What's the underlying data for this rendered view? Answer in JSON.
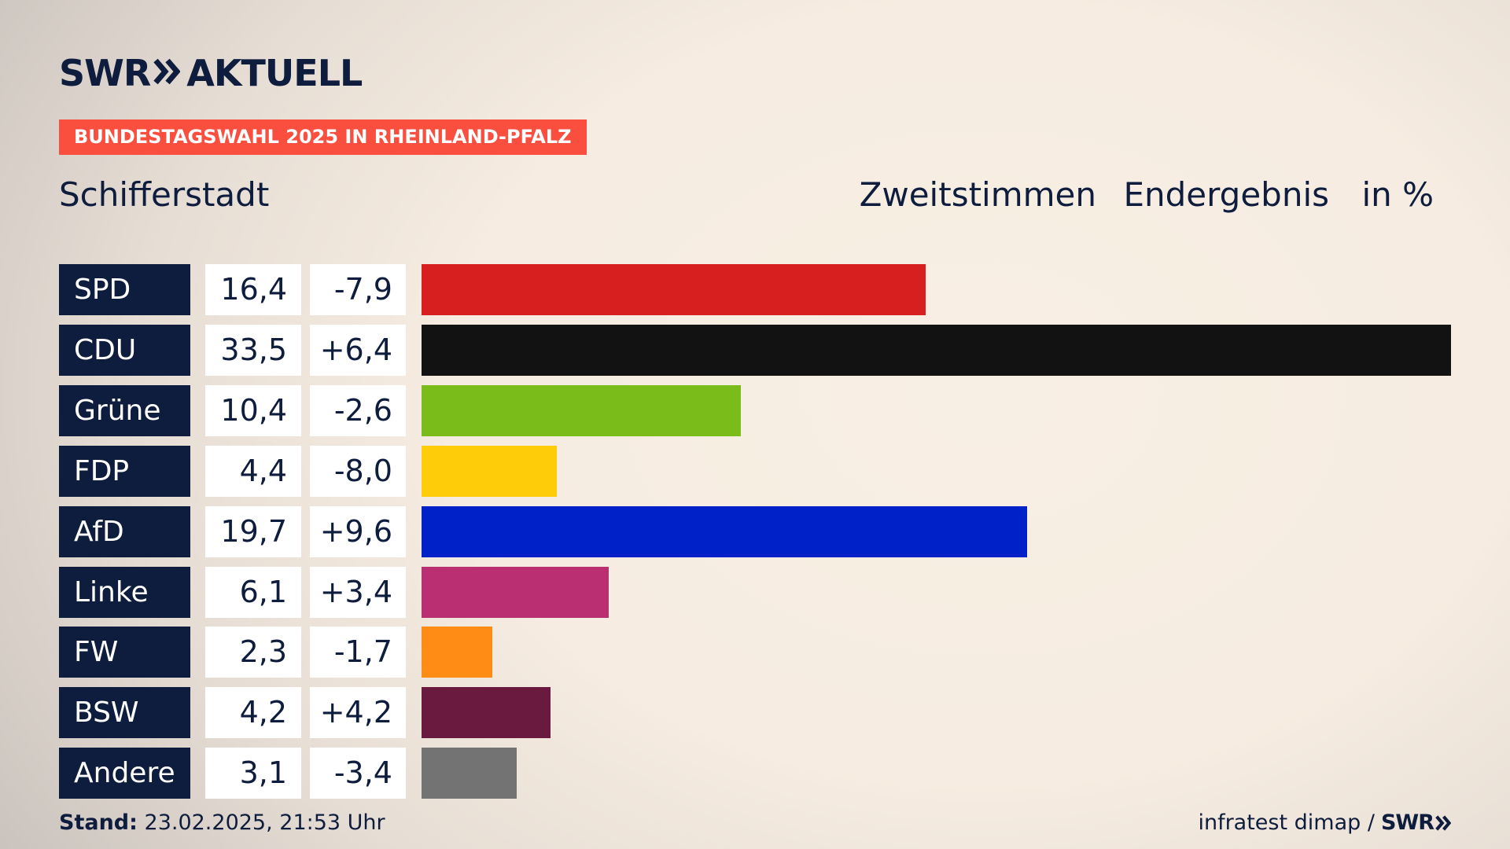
{
  "header": {
    "logo_brand": "SWR",
    "logo_product": "AKTUELL",
    "banner": "BUNDESTAGSWAHL 2025 IN RHEINLAND-PFALZ",
    "location": "Schifferstadt",
    "vote_type": "Zweitstimmen",
    "status": "Endergebnis",
    "unit": "in %"
  },
  "footer": {
    "stand_label": "Stand:",
    "stand_value": "23.02.2025, 21:53 Uhr",
    "source": "infratest dimap /",
    "source_logo": "SWR"
  },
  "colors": {
    "navy": "#0e1c3d",
    "banner": "#fa4f3f"
  },
  "chart_data": {
    "type": "bar",
    "orientation": "horizontal",
    "categories": [
      "SPD",
      "CDU",
      "Grüne",
      "FDP",
      "AfD",
      "Linke",
      "FW",
      "BSW",
      "Andere"
    ],
    "values": [
      16.4,
      33.5,
      10.4,
      4.4,
      19.7,
      6.1,
      2.3,
      4.2,
      3.1
    ],
    "value_labels": [
      "16,4",
      "33,5",
      "10,4",
      "4,4",
      "19,7",
      "6,1",
      "2,3",
      "4,2",
      "3,1"
    ],
    "diff_values": [
      -7.9,
      6.4,
      -2.6,
      -8.0,
      9.6,
      3.4,
      -1.7,
      4.2,
      -3.4
    ],
    "diff_labels": [
      "-7,9",
      "+6,4",
      "-2,6",
      "-8,0",
      "+9,6",
      "+3,4",
      "-1,7",
      "+4,2",
      "-3,4"
    ],
    "bar_colors": [
      "#d81f1f",
      "#121212",
      "#7abd1b",
      "#ffcc0a",
      "#0021c7",
      "#b92f72",
      "#ff8c15",
      "#6a1a3f",
      "#737373"
    ],
    "xlim": [
      0,
      33.5
    ],
    "grid": false,
    "legend": "none"
  }
}
